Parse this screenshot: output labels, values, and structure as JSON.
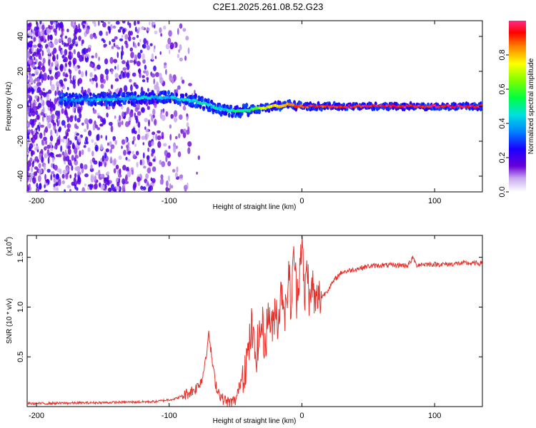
{
  "title": "C2E1.2025.261.08.52.G23",
  "chart_data": [
    {
      "type": "heatmap",
      "name": "spectrogram",
      "xlabel": "Height of straight line (km)",
      "ylabel": "Frequency (Hz)",
      "xlim": [
        -207,
        136
      ],
      "ylim": [
        -49,
        49
      ],
      "xticks": [
        -200,
        -100,
        0,
        100
      ],
      "yticks": [
        -40,
        -20,
        0,
        20,
        40
      ],
      "colorbar": {
        "label": "Normalized spectral amplitude",
        "range": [
          0.0,
          1.0
        ],
        "ticks": [
          0.0,
          0.2,
          0.4,
          0.6,
          0.8
        ],
        "tick_labels": [
          "0.0",
          "0.2",
          "0.4",
          "0.6",
          "0.8"
        ]
      },
      "ridge": [
        {
          "x": -180,
          "freq": 4,
          "amp": 0.35
        },
        {
          "x": -150,
          "freq": 4,
          "amp": 0.4
        },
        {
          "x": -120,
          "freq": 5,
          "amp": 0.4
        },
        {
          "x": -100,
          "freq": 5,
          "amp": 0.42
        },
        {
          "x": -80,
          "freq": 3,
          "amp": 0.45
        },
        {
          "x": -60,
          "freq": -2,
          "amp": 0.45
        },
        {
          "x": -50,
          "freq": -3,
          "amp": 0.5
        },
        {
          "x": -40,
          "freq": -2,
          "amp": 0.55
        },
        {
          "x": -30,
          "freq": -1,
          "amp": 0.7
        },
        {
          "x": -20,
          "freq": 0,
          "amp": 0.8
        },
        {
          "x": -10,
          "freq": 1,
          "amp": 0.85
        },
        {
          "x": 0,
          "freq": 0,
          "amp": 0.9
        },
        {
          "x": 50,
          "freq": 0,
          "amp": 0.95
        },
        {
          "x": 100,
          "freq": 0,
          "amp": 0.95
        },
        {
          "x": 136,
          "freq": 0,
          "amp": 0.95
        }
      ]
    },
    {
      "type": "line",
      "name": "snr",
      "xlabel": "Height of straight line (km)",
      "ylabel": "SNR (10 * v/v)",
      "yscale_label": "(x10",
      "yscale_exp": "4",
      "xlim": [
        -207,
        136
      ],
      "ylim": [
        0,
        1.72
      ],
      "xticks": [
        -200,
        -100,
        0,
        100
      ],
      "yticks": [
        0.5,
        1.0,
        1.5
      ],
      "ytick_labels": [
        "0.5",
        "1.0",
        "1.5"
      ],
      "color": "#e8302a",
      "series": [
        {
          "name": "SNR",
          "x": [
            -207,
            -150,
            -110,
            -95,
            -88,
            -80,
            -75,
            -72,
            -70,
            -68,
            -66,
            -64,
            -60,
            -55,
            -50,
            -48,
            -45,
            -42,
            -40,
            -38,
            -35,
            -32,
            -30,
            -28,
            -25,
            -22,
            -20,
            -18,
            -15,
            -12,
            -10,
            -8,
            -6,
            -4,
            -2,
            0,
            2,
            4,
            6,
            8,
            10,
            12,
            15,
            20,
            25,
            30,
            40,
            50,
            60,
            70,
            80,
            84,
            86,
            90,
            100,
            110,
            120,
            136
          ],
          "y": [
            0.03,
            0.04,
            0.05,
            0.08,
            0.12,
            0.18,
            0.28,
            0.55,
            0.72,
            0.5,
            0.3,
            0.18,
            0.08,
            0.04,
            0.06,
            0.15,
            0.32,
            0.45,
            0.55,
            0.8,
            0.5,
            0.7,
            0.85,
            0.6,
            0.95,
            0.75,
            1.05,
            0.85,
            1.2,
            0.9,
            1.4,
            0.95,
            1.6,
            1.1,
            1.35,
            1.7,
            1.05,
            1.45,
            1.0,
            1.25,
            1.0,
            1.1,
            1.1,
            1.18,
            1.28,
            1.35,
            1.38,
            1.41,
            1.42,
            1.42,
            1.42,
            1.5,
            1.42,
            1.43,
            1.43,
            1.43,
            1.44,
            1.44
          ]
        }
      ]
    }
  ]
}
